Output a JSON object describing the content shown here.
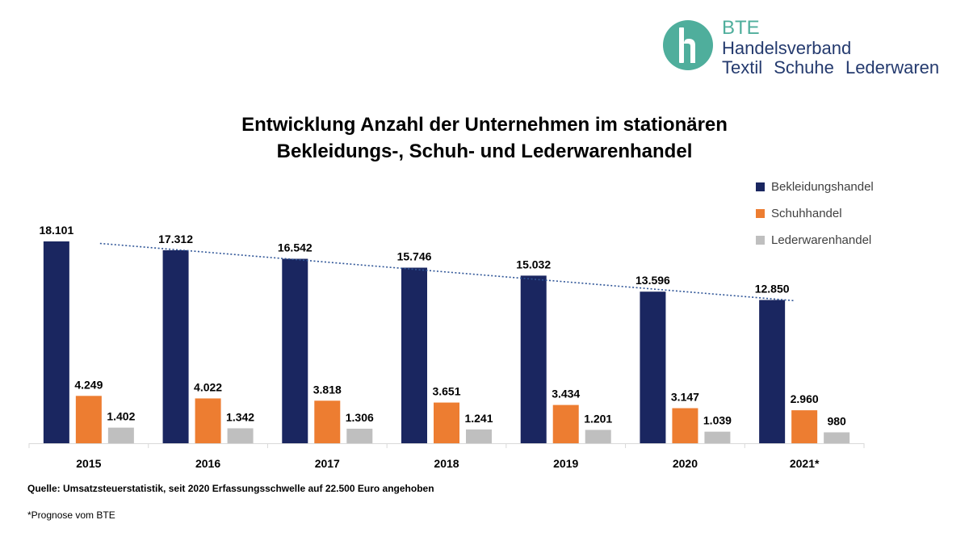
{
  "logo": {
    "line1": "BTE",
    "line2": "Handelsverband",
    "line3": "Textil Schuhe Lederwaren"
  },
  "title_line1": "Entwicklung Anzahl der Unternehmen im stationären",
  "title_line2": "Bekleidungs-, Schuh- und Lederwarenhandel",
  "colors": {
    "bekleidung": "#1a2660",
    "schuh": "#ed7d31",
    "leder": "#bfbfbf",
    "trend": "#2f5597",
    "logo_accent": "#4fae9c"
  },
  "chart_data": {
    "type": "bar",
    "categories": [
      "2015",
      "2016",
      "2017",
      "2018",
      "2019",
      "2020",
      "2021*"
    ],
    "series": [
      {
        "name": "Bekleidungshandel",
        "values": [
          18101,
          17312,
          16542,
          15746,
          15032,
          13596,
          12850
        ],
        "labels": [
          "18.101",
          "17.312",
          "16.542",
          "15.746",
          "15.032",
          "13.596",
          "12.850"
        ]
      },
      {
        "name": "Schuhhandel",
        "values": [
          4249,
          4022,
          3818,
          3651,
          3434,
          3147,
          2960
        ],
        "labels": [
          "4.249",
          "4.022",
          "3.818",
          "3.651",
          "3.434",
          "3.147",
          "2.960"
        ]
      },
      {
        "name": "Lederwarenhandel",
        "values": [
          1402,
          1342,
          1306,
          1241,
          1201,
          1039,
          980
        ],
        "labels": [
          "1.402",
          "1.342",
          "1.306",
          "1.241",
          "1.201",
          "1.039",
          "980"
        ]
      }
    ],
    "trendline": {
      "series": "Bekleidungshandel",
      "style": "dotted"
    },
    "ylim": [
      0,
      18101
    ],
    "grid": false,
    "legend": "top-right"
  },
  "source": "Quelle: Umsatzsteuerstatistik, seit 2020 Erfassungsschwelle auf 22.500 Euro angehoben",
  "footnote": "*Prognose vom BTE"
}
